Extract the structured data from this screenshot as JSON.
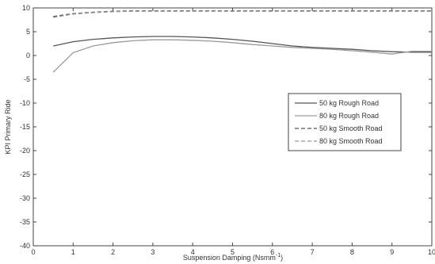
{
  "chart_data": {
    "type": "line",
    "xlabel": "Suspension Damping (Nsmm",
    "xlabel_sup": "-1",
    "xlabel_close": ")",
    "ylabel": "KPI Primary Ride",
    "xlim": [
      0,
      10
    ],
    "ylim": [
      -40,
      10
    ],
    "xticks": [
      0,
      1,
      2,
      3,
      4,
      5,
      6,
      7,
      8,
      9,
      10
    ],
    "yticks": [
      10,
      5,
      0,
      -5,
      -10,
      -15,
      -20,
      -25,
      -30,
      -35,
      -40
    ],
    "grid": false,
    "legend_position": "right-middle",
    "series": [
      {
        "name": "50 kg Rough Road",
        "color": "#555555",
        "dash": "solid",
        "x": [
          0.5,
          1,
          1.5,
          2,
          2.5,
          3,
          3.5,
          4,
          4.5,
          5,
          5.5,
          6,
          6.5,
          7,
          7.5,
          8,
          8.5,
          9,
          9.5,
          10
        ],
        "y": [
          2.0,
          2.9,
          3.4,
          3.7,
          3.9,
          4.0,
          4.0,
          3.9,
          3.7,
          3.4,
          3.0,
          2.5,
          2.0,
          1.7,
          1.5,
          1.3,
          1.0,
          0.8,
          0.7,
          0.7
        ]
      },
      {
        "name": "80 kg Rough Road",
        "color": "#9a9a9a",
        "dash": "solid",
        "x": [
          0.5,
          1,
          1.5,
          2,
          2.5,
          3,
          3.5,
          4,
          4.5,
          5,
          5.5,
          6,
          6.5,
          7,
          7.5,
          8,
          8.5,
          9,
          9.5,
          10
        ],
        "y": [
          -3.5,
          0.6,
          2.0,
          2.7,
          3.1,
          3.3,
          3.3,
          3.2,
          3.0,
          2.7,
          2.3,
          2.0,
          1.7,
          1.5,
          1.3,
          1.0,
          0.7,
          0.3,
          0.9,
          0.9
        ]
      },
      {
        "name": "50 kg Smooth Road",
        "color": "#555555",
        "dash": "dashed",
        "x": [
          0.5,
          1,
          1.5,
          2,
          2.5,
          3,
          4,
          5,
          6,
          7,
          8,
          9,
          10
        ],
        "y": [
          8.2,
          8.8,
          9.1,
          9.3,
          9.4,
          9.4,
          9.4,
          9.4,
          9.4,
          9.4,
          9.4,
          9.4,
          9.4
        ]
      },
      {
        "name": "80 kg Smooth Road",
        "color": "#9a9a9a",
        "dash": "dashed",
        "x": [
          0.5,
          1,
          1.5,
          2,
          2.5,
          3,
          4,
          5,
          6,
          7,
          8,
          9,
          10
        ],
        "y": [
          8.0,
          8.7,
          9.0,
          9.2,
          9.3,
          9.3,
          9.3,
          9.3,
          9.3,
          9.3,
          9.3,
          9.3,
          9.3
        ]
      }
    ]
  }
}
